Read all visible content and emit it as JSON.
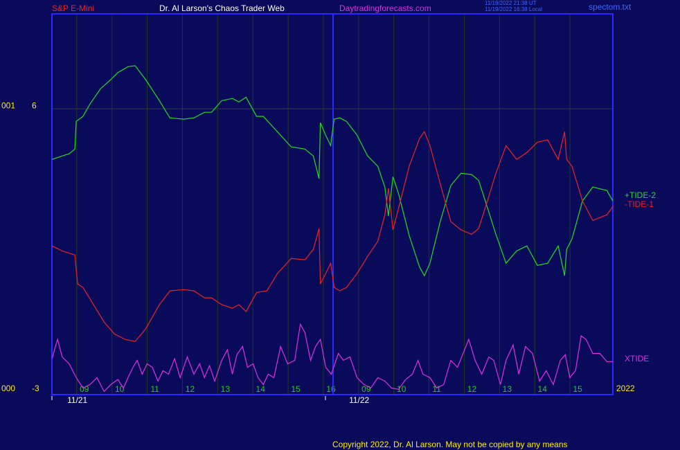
{
  "header": {
    "symbol": "S&P E-Mini",
    "site_title": "Dr. Al Larson's Chaos Trader Web",
    "url": "Daytradingforecasts.com",
    "time_ut": "11/19/2022 21:38 UT",
    "time_local": "11/19/2022 16:38 Local",
    "file": "spectom.txt"
  },
  "footer": {
    "copyright": "Copyright 2022, Dr. Al Larson. May not be copied by any means",
    "year": "2022"
  },
  "chart_data": {
    "type": "line",
    "xlim": [
      0.08,
      16.0
    ],
    "ylim": [
      -3.09,
      9.02
    ],
    "xticks": [
      {
        "value": 1,
        "label": "09"
      },
      {
        "value": 2,
        "label": "10"
      },
      {
        "value": 3,
        "label": "11"
      },
      {
        "value": 4,
        "label": "12"
      },
      {
        "value": 5,
        "label": "13"
      },
      {
        "value": 6,
        "label": "14"
      },
      {
        "value": 7,
        "label": "15"
      },
      {
        "value": 8,
        "label": "16"
      },
      {
        "value": 9,
        "label": "09"
      },
      {
        "value": 10,
        "label": "10"
      },
      {
        "value": 11,
        "label": "11"
      },
      {
        "value": 12,
        "label": "12"
      },
      {
        "value": 13,
        "label": "13"
      },
      {
        "value": 14,
        "label": "14"
      },
      {
        "value": 15,
        "label": "15"
      }
    ],
    "date_labels": [
      {
        "value": 0.8,
        "label": "11/21"
      },
      {
        "value": 8.8,
        "label": "11/22"
      }
    ],
    "yticks": [
      -3,
      6
    ],
    "left_labels": [
      {
        "value": 6,
        "label": "001"
      },
      {
        "value": -3,
        "label": "000"
      }
    ],
    "grid": true,
    "series": [
      {
        "name": "+TIDE-2",
        "color": "#22dd22",
        "x": [
          0.08,
          0.37,
          0.57,
          0.73,
          0.77,
          0.96,
          1.16,
          1.46,
          1.75,
          1.95,
          2.24,
          2.44,
          2.74,
          3.13,
          3.43,
          3.82,
          4.11,
          4.41,
          4.61,
          4.9,
          5.2,
          5.39,
          5.59,
          5.89,
          6.08,
          6.48,
          6.87,
          7.26,
          7.5,
          7.66,
          7.7,
          7.85,
          7.99,
          8.09,
          8.25,
          8.44,
          8.74,
          9.04,
          9.33,
          9.53,
          9.63,
          9.76,
          9.92,
          10.22,
          10.51,
          10.65,
          10.81,
          11.1,
          11.4,
          11.69,
          11.99,
          12.19,
          12.38,
          12.68,
          12.97,
          13.27,
          13.56,
          13.86,
          14.15,
          14.45,
          14.63,
          14.69,
          14.84,
          15.14,
          15.43,
          15.83,
          16.0
        ],
        "values": [
          4.39,
          4.5,
          4.57,
          4.72,
          5.6,
          5.76,
          6.15,
          6.64,
          6.93,
          7.15,
          7.34,
          7.37,
          6.93,
          6.26,
          5.71,
          5.67,
          5.71,
          5.89,
          5.89,
          6.26,
          6.33,
          6.22,
          6.37,
          5.76,
          5.76,
          5.27,
          4.79,
          4.72,
          4.5,
          3.78,
          5.56,
          5.16,
          4.83,
          5.67,
          5.71,
          5.6,
          5.16,
          4.5,
          4.17,
          3.51,
          2.59,
          3.84,
          3.29,
          1.97,
          0.98,
          0.69,
          1.09,
          2.41,
          3.56,
          3.95,
          3.91,
          3.73,
          3.07,
          2.01,
          1.09,
          1.48,
          1.64,
          1.02,
          1.09,
          1.64,
          0.69,
          1.53,
          1.86,
          3.07,
          3.51,
          3.4,
          3.07
        ]
      },
      {
        "name": "-TIDE-1",
        "color": "#ee2222",
        "x": [
          0.08,
          0.37,
          0.73,
          0.81,
          0.96,
          1.26,
          1.56,
          1.85,
          2.15,
          2.44,
          2.74,
          3.13,
          3.43,
          3.82,
          4.11,
          4.41,
          4.61,
          4.9,
          5.2,
          5.39,
          5.59,
          5.89,
          6.18,
          6.48,
          6.87,
          7.26,
          7.5,
          7.66,
          7.7,
          7.85,
          7.99,
          8.09,
          8.25,
          8.44,
          8.74,
          9.04,
          9.33,
          9.53,
          9.63,
          9.76,
          9.92,
          10.22,
          10.51,
          10.65,
          10.81,
          11.1,
          11.4,
          11.69,
          11.99,
          12.19,
          12.38,
          12.68,
          12.97,
          13.27,
          13.56,
          13.86,
          14.15,
          14.45,
          14.63,
          14.69,
          14.84,
          15.14,
          15.43,
          15.83,
          16.0
        ],
        "values": [
          1.64,
          1.48,
          1.35,
          0.43,
          0.32,
          -0.23,
          -0.78,
          -1.16,
          -1.33,
          -1.4,
          -1.0,
          -0.23,
          0.21,
          0.25,
          0.21,
          -0.01,
          -0.01,
          -0.23,
          -0.34,
          -0.23,
          -0.45,
          0.16,
          0.21,
          0.76,
          1.24,
          1.2,
          1.53,
          2.19,
          0.43,
          0.76,
          1.09,
          0.32,
          0.21,
          0.32,
          0.76,
          1.31,
          1.79,
          2.63,
          3.47,
          2.15,
          2.85,
          4.17,
          5.05,
          5.27,
          4.83,
          3.62,
          2.41,
          2.15,
          2.01,
          2.19,
          2.85,
          3.95,
          4.83,
          4.39,
          4.61,
          4.94,
          5.01,
          4.39,
          5.27,
          4.39,
          4.17,
          3.07,
          2.45,
          2.63,
          2.89
        ]
      },
      {
        "name": "XTIDE",
        "color": "#e030e0",
        "x": [
          0.08,
          0.24,
          0.37,
          0.57,
          0.77,
          0.96,
          1.16,
          1.36,
          1.56,
          1.75,
          1.95,
          2.11,
          2.24,
          2.38,
          2.5,
          2.64,
          2.78,
          2.93,
          3.09,
          3.23,
          3.39,
          3.56,
          3.72,
          3.92,
          4.11,
          4.27,
          4.41,
          4.55,
          4.7,
          4.9,
          5.06,
          5.2,
          5.33,
          5.49,
          5.63,
          5.79,
          5.93,
          6.08,
          6.22,
          6.38,
          6.57,
          6.77,
          6.97,
          7.13,
          7.26,
          7.42,
          7.56,
          7.7,
          7.85,
          8.01,
          8.21,
          8.35,
          8.54,
          8.74,
          8.94,
          9.13,
          9.33,
          9.53,
          9.72,
          9.92,
          10.12,
          10.31,
          10.47,
          10.61,
          10.81,
          11.0,
          11.2,
          11.4,
          11.59,
          11.75,
          11.91,
          12.09,
          12.28,
          12.48,
          12.62,
          12.81,
          12.97,
          13.17,
          13.33,
          13.52,
          13.72,
          13.92,
          14.11,
          14.31,
          14.51,
          14.65,
          14.78,
          14.94,
          15.1,
          15.24,
          15.43,
          15.63,
          15.83,
          16.0
        ],
        "values": [
          -1.95,
          -1.33,
          -1.89,
          -2.11,
          -2.55,
          -2.88,
          -2.77,
          -2.55,
          -2.99,
          -2.77,
          -2.61,
          -2.88,
          -2.55,
          -2.22,
          -2.0,
          -2.44,
          -2.11,
          -2.22,
          -2.66,
          -2.33,
          -2.44,
          -1.95,
          -2.55,
          -1.89,
          -2.44,
          -2.11,
          -2.55,
          -2.17,
          -2.66,
          -2.0,
          -1.66,
          -2.44,
          -1.82,
          -1.56,
          -2.22,
          -2.11,
          -2.55,
          -2.77,
          -2.44,
          -2.55,
          -1.56,
          -2.11,
          -2.0,
          -0.85,
          -1.11,
          -2.0,
          -1.56,
          -1.33,
          -2.22,
          -2.44,
          -1.78,
          -2.0,
          -1.89,
          -2.55,
          -2.77,
          -2.88,
          -2.55,
          -2.66,
          -2.88,
          -2.92,
          -2.61,
          -2.44,
          -2.0,
          -2.44,
          -2.55,
          -2.88,
          -2.77,
          -2.0,
          -2.22,
          -1.78,
          -1.33,
          -2.0,
          -2.44,
          -1.89,
          -2.0,
          -2.77,
          -2.0,
          -1.51,
          -2.44,
          -1.56,
          -1.78,
          -2.66,
          -2.33,
          -2.77,
          -2.0,
          -1.82,
          -2.55,
          -2.33,
          -1.22,
          -1.33,
          -1.78,
          -1.78,
          -2.04,
          -2.04
        ]
      }
    ]
  }
}
